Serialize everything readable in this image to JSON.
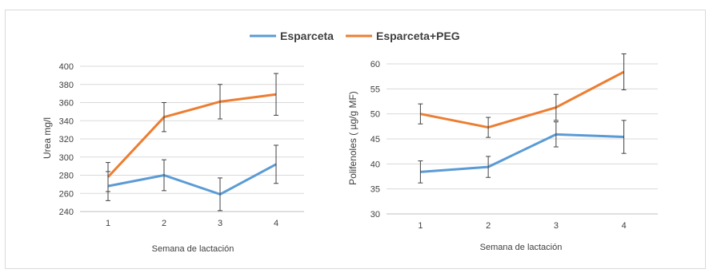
{
  "legend": {
    "position": "top-center",
    "items": [
      {
        "label": "Esparceta",
        "color": "#5b9bd5"
      },
      {
        "label": "Esparceta+PEG",
        "color": "#ed7d31"
      }
    ]
  },
  "chart_data": [
    {
      "type": "line",
      "title": "",
      "xlabel": "Semana de lactación",
      "ylabel": "Urea mg/l",
      "categories": [
        "1",
        "2",
        "3",
        "4"
      ],
      "ylim": [
        240,
        400
      ],
      "yticks": [
        240,
        260,
        280,
        300,
        320,
        340,
        360,
        380,
        400
      ],
      "grid": true,
      "series": [
        {
          "name": "Esparceta",
          "color": "#5b9bd5",
          "values": [
            268,
            280,
            259,
            292
          ],
          "error": [
            16,
            17,
            18,
            21
          ]
        },
        {
          "name": "Esparceta+PEG",
          "color": "#ed7d31",
          "values": [
            278,
            344,
            361,
            369
          ],
          "error": [
            16,
            16,
            19,
            23
          ]
        }
      ]
    },
    {
      "type": "line",
      "title": "",
      "xlabel": "Semana de lactación",
      "ylabel": "Polifenoles ( µg/g MF)",
      "categories": [
        "1",
        "2",
        "3",
        "4"
      ],
      "ylim": [
        30,
        60
      ],
      "yticks": [
        30,
        35,
        40,
        45,
        50,
        55,
        60
      ],
      "grid": true,
      "series": [
        {
          "name": "Esparceta",
          "color": "#5b9bd5",
          "values": [
            38.4,
            39.4,
            45.9,
            45.4
          ],
          "error": [
            2.2,
            2.1,
            2.5,
            3.3
          ]
        },
        {
          "name": "Esparceta+PEG",
          "color": "#ed7d31",
          "values": [
            50.0,
            47.3,
            51.3,
            58.4
          ],
          "error": [
            2.0,
            2.0,
            2.6,
            3.6
          ]
        }
      ]
    }
  ]
}
